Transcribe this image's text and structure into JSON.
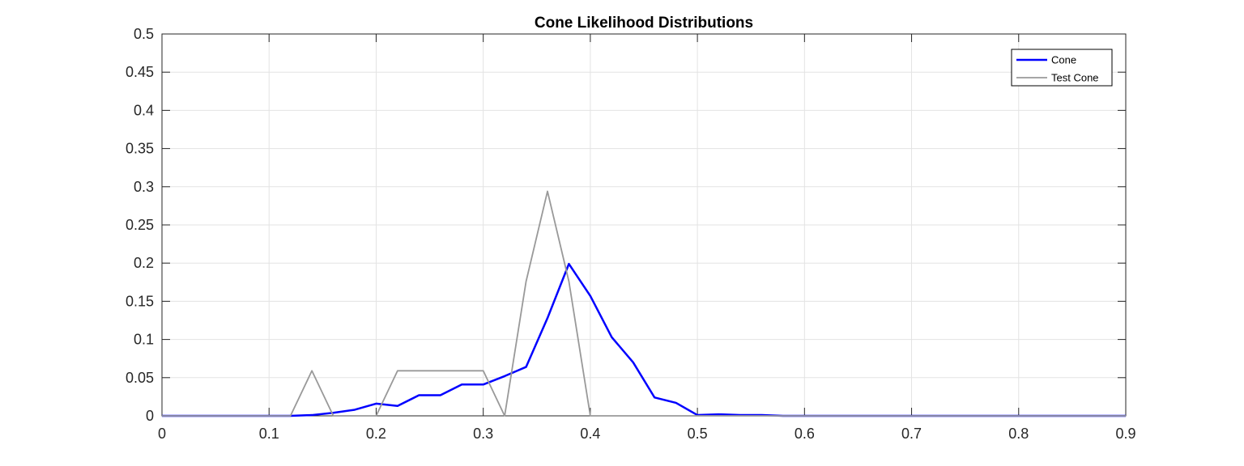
{
  "chart_data": {
    "type": "line",
    "title": "Cone Likelihood Distributions",
    "xlabel": "",
    "ylabel": "",
    "xlim": [
      0,
      0.9
    ],
    "ylim": [
      0,
      0.5
    ],
    "xticks": [
      0,
      0.1,
      0.2,
      0.3,
      0.4,
      0.5,
      0.6,
      0.7,
      0.8,
      0.9
    ],
    "xtick_labels": [
      "0",
      "0.1",
      "0.2",
      "0.3",
      "0.4",
      "0.5",
      "0.6",
      "0.7",
      "0.8",
      "0.9"
    ],
    "yticks": [
      0,
      0.05,
      0.1,
      0.15,
      0.2,
      0.25,
      0.3,
      0.35,
      0.4,
      0.45,
      0.5
    ],
    "ytick_labels": [
      "0",
      "0.05",
      "0.1",
      "0.15",
      "0.2",
      "0.25",
      "0.3",
      "0.35",
      "0.4",
      "0.45",
      "0.5"
    ],
    "grid": true,
    "legend_position": "top-right",
    "series": [
      {
        "name": "Cone",
        "color": "#0000ff",
        "x": [
          0,
          0.02,
          0.04,
          0.06,
          0.08,
          0.1,
          0.12,
          0.14,
          0.16,
          0.18,
          0.2,
          0.22,
          0.24,
          0.26,
          0.28,
          0.3,
          0.32,
          0.34,
          0.36,
          0.38,
          0.4,
          0.42,
          0.44,
          0.46,
          0.48,
          0.5,
          0.52,
          0.54,
          0.56,
          0.58,
          0.6,
          0.62,
          0.64,
          0.66,
          0.68,
          0.7,
          0.72,
          0.74,
          0.76,
          0.78,
          0.8,
          0.82,
          0.84,
          0.86,
          0.88,
          0.9
        ],
        "values": [
          0,
          0,
          0,
          0,
          0,
          0,
          0,
          0.001,
          0.004,
          0.008,
          0.016,
          0.013,
          0.027,
          0.027,
          0.041,
          0.041,
          0.052,
          0.064,
          0.128,
          0.199,
          0.157,
          0.103,
          0.07,
          0.024,
          0.017,
          0.001,
          0.002,
          0.001,
          0.001,
          0,
          0,
          0,
          0,
          0,
          0,
          0,
          0,
          0,
          0,
          0,
          0,
          0,
          0,
          0,
          0,
          0
        ]
      },
      {
        "name": "Test Cone",
        "color": "#999999",
        "x": [
          0,
          0.02,
          0.04,
          0.06,
          0.08,
          0.1,
          0.12,
          0.14,
          0.16,
          0.18,
          0.2,
          0.22,
          0.24,
          0.26,
          0.28,
          0.3,
          0.32,
          0.34,
          0.36,
          0.38,
          0.4,
          0.42,
          0.44,
          0.46,
          0.48,
          0.5,
          0.52,
          0.54,
          0.56,
          0.58,
          0.6,
          0.62,
          0.64,
          0.66,
          0.68,
          0.7,
          0.72,
          0.74,
          0.76,
          0.78,
          0.8,
          0.82,
          0.84,
          0.86,
          0.88,
          0.9
        ],
        "values": [
          0,
          0,
          0,
          0,
          0,
          0,
          0,
          0.059,
          0,
          0,
          0,
          0.059,
          0.059,
          0.059,
          0.059,
          0.059,
          0,
          0.176,
          0.294,
          0.176,
          0,
          0,
          0,
          0,
          0,
          0,
          0,
          0,
          0,
          0,
          0,
          0,
          0,
          0,
          0,
          0,
          0,
          0,
          0,
          0,
          0,
          0,
          0,
          0,
          0,
          0
        ]
      }
    ]
  }
}
